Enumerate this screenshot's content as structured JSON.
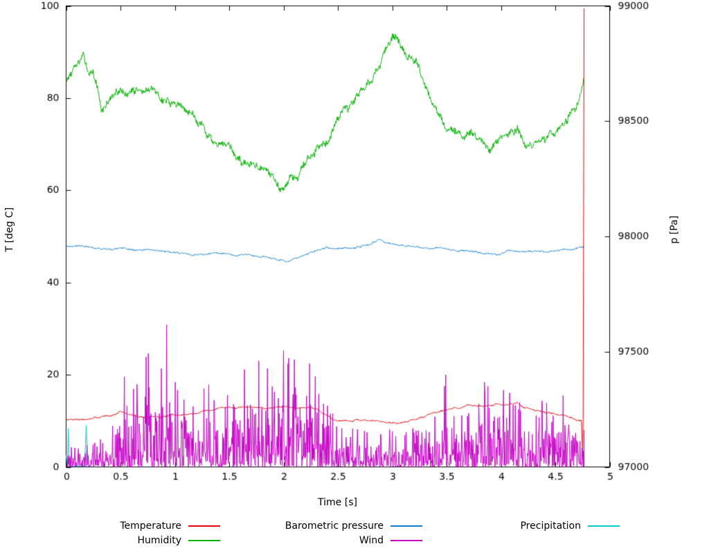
{
  "chart_data": {
    "type": "line",
    "title": "",
    "xlabel": "Time [s]",
    "ylabel_left": "T [deg C]",
    "ylabel_right": "p [Pa]",
    "xlim": [
      0,
      5
    ],
    "ylim_left": [
      0,
      100
    ],
    "ylim_right": [
      97000,
      99000
    ],
    "xticks": [
      0,
      0.5,
      1,
      1.5,
      2,
      2.5,
      3,
      3.5,
      4,
      4.5,
      5
    ],
    "xtick_labels": [
      "0",
      "0.5",
      "1",
      "1.5",
      "2",
      "2.5",
      "3",
      "3.5",
      "4",
      "4.5",
      "5"
    ],
    "yticks_left": [
      0,
      20,
      40,
      60,
      80,
      100
    ],
    "ytick_labels_left": [
      "0",
      "20",
      "40",
      "60",
      "80",
      "100"
    ],
    "yticks_right": [
      97000,
      97500,
      98000,
      98500,
      99000
    ],
    "ytick_labels_right": [
      "97000",
      "97500",
      "98000",
      "98500",
      "99000"
    ],
    "grid": false,
    "legend_position": "bottom",
    "legend": {
      "items": [
        {
          "label": "Temperature",
          "color": "#e00000"
        },
        {
          "label": "Barometric pressure",
          "color": "#0a7cd2"
        },
        {
          "label": "Precipitation",
          "color": "#00c8c8"
        },
        {
          "label": "Humidity",
          "color": "#00b000"
        },
        {
          "label": "Wind",
          "color": "#c400c4"
        }
      ]
    },
    "series": [
      {
        "name": "Precipitation",
        "color": "#00c8c8",
        "axis": "left",
        "noise": "none",
        "seed": 3,
        "keypoints": [
          [
            0,
            2.5
          ],
          [
            0.012,
            0.2
          ],
          [
            0.02,
            8.3
          ],
          [
            0.03,
            0.2
          ],
          [
            0.17,
            0.2
          ],
          [
            0.185,
            9.0
          ],
          [
            0.2,
            0.2
          ],
          [
            0.23,
            0.1
          ]
        ]
      },
      {
        "name": "Barometric pressure",
        "color": "#0a7cd2",
        "axis": "right",
        "noise": "jitter",
        "noise_amp": 5,
        "seed": 21,
        "step": 0.004,
        "keypoints": [
          [
            0,
            97960
          ],
          [
            0.15,
            97958
          ],
          [
            0.3,
            97952
          ],
          [
            0.5,
            97948
          ],
          [
            0.7,
            97940
          ],
          [
            0.9,
            97932
          ],
          [
            1.05,
            97928
          ],
          [
            1.2,
            97922
          ],
          [
            1.3,
            97930
          ],
          [
            1.45,
            97924
          ],
          [
            1.55,
            97918
          ],
          [
            1.65,
            97924
          ],
          [
            1.75,
            97916
          ],
          [
            1.85,
            97908
          ],
          [
            1.95,
            97902
          ],
          [
            2.02,
            97895
          ],
          [
            2.1,
            97908
          ],
          [
            2.2,
            97918
          ],
          [
            2.3,
            97935
          ],
          [
            2.4,
            97950
          ],
          [
            2.5,
            97944
          ],
          [
            2.6,
            97950
          ],
          [
            2.7,
            97955
          ],
          [
            2.8,
            97962
          ],
          [
            2.88,
            97985
          ],
          [
            2.95,
            97975
          ],
          [
            3.05,
            97962
          ],
          [
            3.15,
            97955
          ],
          [
            3.25,
            97950
          ],
          [
            3.35,
            97948
          ],
          [
            3.45,
            97955
          ],
          [
            3.55,
            97945
          ],
          [
            3.65,
            97938
          ],
          [
            3.75,
            97932
          ],
          [
            3.85,
            97926
          ],
          [
            3.95,
            97924
          ],
          [
            4.05,
            97932
          ],
          [
            4.2,
            97938
          ],
          [
            4.35,
            97936
          ],
          [
            4.5,
            97942
          ],
          [
            4.65,
            97946
          ],
          [
            4.765,
            97952
          ]
        ]
      },
      {
        "name": "Humidity",
        "color": "#00b000",
        "axis": "left",
        "noise": "jitter",
        "noise_amp": 1.2,
        "seed": 13,
        "step": 0.004,
        "keypoints": [
          [
            0,
            84
          ],
          [
            0.05,
            85.5
          ],
          [
            0.1,
            86
          ],
          [
            0.15,
            88
          ],
          [
            0.2,
            86
          ],
          [
            0.25,
            84.5
          ],
          [
            0.3,
            80.5
          ],
          [
            0.33,
            76.5
          ],
          [
            0.38,
            79
          ],
          [
            0.45,
            80
          ],
          [
            0.5,
            81
          ],
          [
            0.55,
            80
          ],
          [
            0.62,
            81
          ],
          [
            0.7,
            81.5
          ],
          [
            0.78,
            80.5
          ],
          [
            0.85,
            80
          ],
          [
            0.95,
            79.5
          ],
          [
            1.05,
            78
          ],
          [
            1.15,
            77
          ],
          [
            1.25,
            74.5
          ],
          [
            1.32,
            72
          ],
          [
            1.4,
            69
          ],
          [
            1.5,
            68
          ],
          [
            1.55,
            66.5
          ],
          [
            1.62,
            66
          ],
          [
            1.7,
            65
          ],
          [
            1.78,
            63.5
          ],
          [
            1.85,
            62.5
          ],
          [
            1.92,
            60.5
          ],
          [
            1.97,
            60
          ],
          [
            2.02,
            62
          ],
          [
            2.07,
            64
          ],
          [
            2.12,
            63.5
          ],
          [
            2.2,
            65.5
          ],
          [
            2.3,
            68
          ],
          [
            2.4,
            72
          ],
          [
            2.48,
            77
          ],
          [
            2.55,
            80
          ],
          [
            2.6,
            78.5
          ],
          [
            2.65,
            80
          ],
          [
            2.75,
            83
          ],
          [
            2.85,
            86
          ],
          [
            2.95,
            89.5
          ],
          [
            3.0,
            91.5
          ],
          [
            3.05,
            90.5
          ],
          [
            3.12,
            88
          ],
          [
            3.2,
            86.5
          ],
          [
            3.3,
            83
          ],
          [
            3.4,
            78.5
          ],
          [
            3.5,
            74.5
          ],
          [
            3.6,
            72.5
          ],
          [
            3.7,
            71
          ],
          [
            3.8,
            70
          ],
          [
            3.9,
            68.5
          ],
          [
            4.0,
            70
          ],
          [
            4.1,
            71
          ],
          [
            4.15,
            73
          ],
          [
            4.22,
            70
          ],
          [
            4.3,
            69
          ],
          [
            4.4,
            71.5
          ],
          [
            4.5,
            73
          ],
          [
            4.6,
            75.5
          ],
          [
            4.67,
            78.5
          ],
          [
            4.72,
            80
          ],
          [
            4.765,
            84
          ]
        ]
      },
      {
        "name": "Temperature",
        "color": "#e00000",
        "axis": "left",
        "noise": "jitter",
        "noise_amp": 0.25,
        "seed": 7,
        "step": 0.004,
        "keypoints": [
          [
            0,
            10.3
          ],
          [
            0.1,
            10.5
          ],
          [
            0.2,
            10.4
          ],
          [
            0.3,
            10.7
          ],
          [
            0.4,
            11.2
          ],
          [
            0.5,
            12
          ],
          [
            0.55,
            11.6
          ],
          [
            0.65,
            10.9
          ],
          [
            0.8,
            10.9
          ],
          [
            0.95,
            11
          ],
          [
            1.1,
            11.3
          ],
          [
            1.2,
            11.6
          ],
          [
            1.3,
            12.5
          ],
          [
            1.4,
            12.9
          ],
          [
            1.5,
            13
          ],
          [
            1.6,
            12.7
          ],
          [
            1.7,
            12.9
          ],
          [
            1.8,
            13
          ],
          [
            1.9,
            13.1
          ],
          [
            2.0,
            13.2
          ],
          [
            2.1,
            13
          ],
          [
            2.2,
            13.1
          ],
          [
            2.3,
            12.9
          ],
          [
            2.35,
            11.8
          ],
          [
            2.45,
            10.3
          ],
          [
            2.55,
            10.1
          ],
          [
            2.7,
            10
          ],
          [
            2.85,
            9.9
          ],
          [
            2.95,
            9.6
          ],
          [
            3.05,
            9.7
          ],
          [
            3.15,
            10.1
          ],
          [
            3.3,
            11
          ],
          [
            3.45,
            12.4
          ],
          [
            3.55,
            12.9
          ],
          [
            3.65,
            13
          ],
          [
            3.75,
            13.3
          ],
          [
            3.85,
            13.1
          ],
          [
            3.95,
            13.4
          ],
          [
            4.05,
            13.2
          ],
          [
            4.15,
            14
          ],
          [
            4.2,
            13.2
          ],
          [
            4.3,
            12.2
          ],
          [
            4.4,
            11.8
          ],
          [
            4.5,
            11.5
          ],
          [
            4.6,
            11.2
          ],
          [
            4.7,
            10.4
          ],
          [
            4.74,
            10.2
          ],
          [
            4.755,
            0.5
          ],
          [
            4.765,
            99.5
          ]
        ]
      },
      {
        "name": "Wind",
        "color": "#c400c4",
        "axis": "left",
        "noise": "spike",
        "noise_amp": 1,
        "seed": 42,
        "step": 0.004,
        "keypoints": [
          [
            0,
            4
          ],
          [
            0.1,
            5
          ],
          [
            0.2,
            5
          ],
          [
            0.3,
            6
          ],
          [
            0.4,
            6
          ],
          [
            0.45,
            12
          ],
          [
            0.5,
            18
          ],
          [
            0.55,
            25
          ],
          [
            0.62,
            18
          ],
          [
            0.7,
            22
          ],
          [
            0.76,
            30
          ],
          [
            0.82,
            20
          ],
          [
            0.88,
            26
          ],
          [
            0.92,
            34
          ],
          [
            0.96,
            26
          ],
          [
            1.0,
            22
          ],
          [
            1.1,
            18
          ],
          [
            1.2,
            16
          ],
          [
            1.3,
            20
          ],
          [
            1.4,
            14
          ],
          [
            1.5,
            16
          ],
          [
            1.6,
            18
          ],
          [
            1.68,
            25
          ],
          [
            1.75,
            22
          ],
          [
            1.8,
            26
          ],
          [
            1.88,
            20
          ],
          [
            1.95,
            18
          ],
          [
            2.0,
            30
          ],
          [
            2.05,
            25
          ],
          [
            2.1,
            30
          ],
          [
            2.15,
            22
          ],
          [
            2.2,
            18
          ],
          [
            2.25,
            28
          ],
          [
            2.3,
            25
          ],
          [
            2.35,
            28
          ],
          [
            2.4,
            18
          ],
          [
            2.45,
            12
          ],
          [
            2.5,
            10
          ],
          [
            2.6,
            8
          ],
          [
            2.7,
            9
          ],
          [
            2.8,
            10
          ],
          [
            2.9,
            8
          ],
          [
            3.0,
            9
          ],
          [
            3.1,
            8
          ],
          [
            3.2,
            9
          ],
          [
            3.3,
            8
          ],
          [
            3.4,
            12
          ],
          [
            3.45,
            24
          ],
          [
            3.5,
            20
          ],
          [
            3.55,
            14
          ],
          [
            3.6,
            12
          ],
          [
            3.7,
            14
          ],
          [
            3.8,
            16
          ],
          [
            3.85,
            20
          ],
          [
            3.9,
            22
          ],
          [
            3.95,
            18
          ],
          [
            4.0,
            21
          ],
          [
            4.1,
            16
          ],
          [
            4.2,
            14
          ],
          [
            4.3,
            12
          ],
          [
            4.4,
            15
          ],
          [
            4.5,
            12
          ],
          [
            4.6,
            18
          ],
          [
            4.65,
            14
          ],
          [
            4.7,
            12
          ],
          [
            4.74,
            10
          ],
          [
            4.765,
            8
          ]
        ]
      }
    ]
  }
}
